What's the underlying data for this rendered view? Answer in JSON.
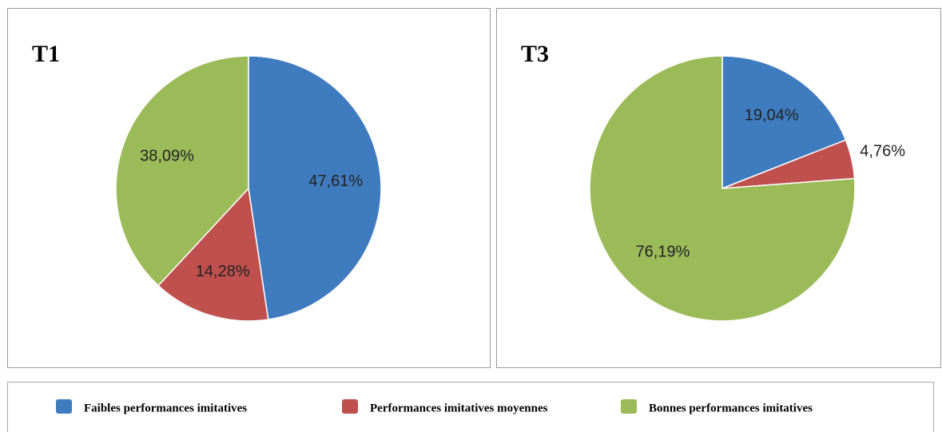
{
  "chart_data": [
    {
      "type": "pie",
      "title": "T1",
      "values": [
        47.61,
        14.28,
        38.09
      ],
      "value_labels": [
        "47,61%",
        "14,28%",
        "38,09%"
      ]
    },
    {
      "type": "pie",
      "title": "T3",
      "values": [
        19.04,
        4.76,
        76.19
      ],
      "value_labels": [
        "19,04%",
        "4,76%",
        "76,19%"
      ]
    }
  ],
  "legend": {
    "labels": [
      "Faibles performances imitatives",
      "Performances imitatives moyennes",
      "Bonnes performances imitatives"
    ],
    "colors": [
      "#3f7cbf",
      "#c0504d",
      "#9bbb59"
    ]
  }
}
